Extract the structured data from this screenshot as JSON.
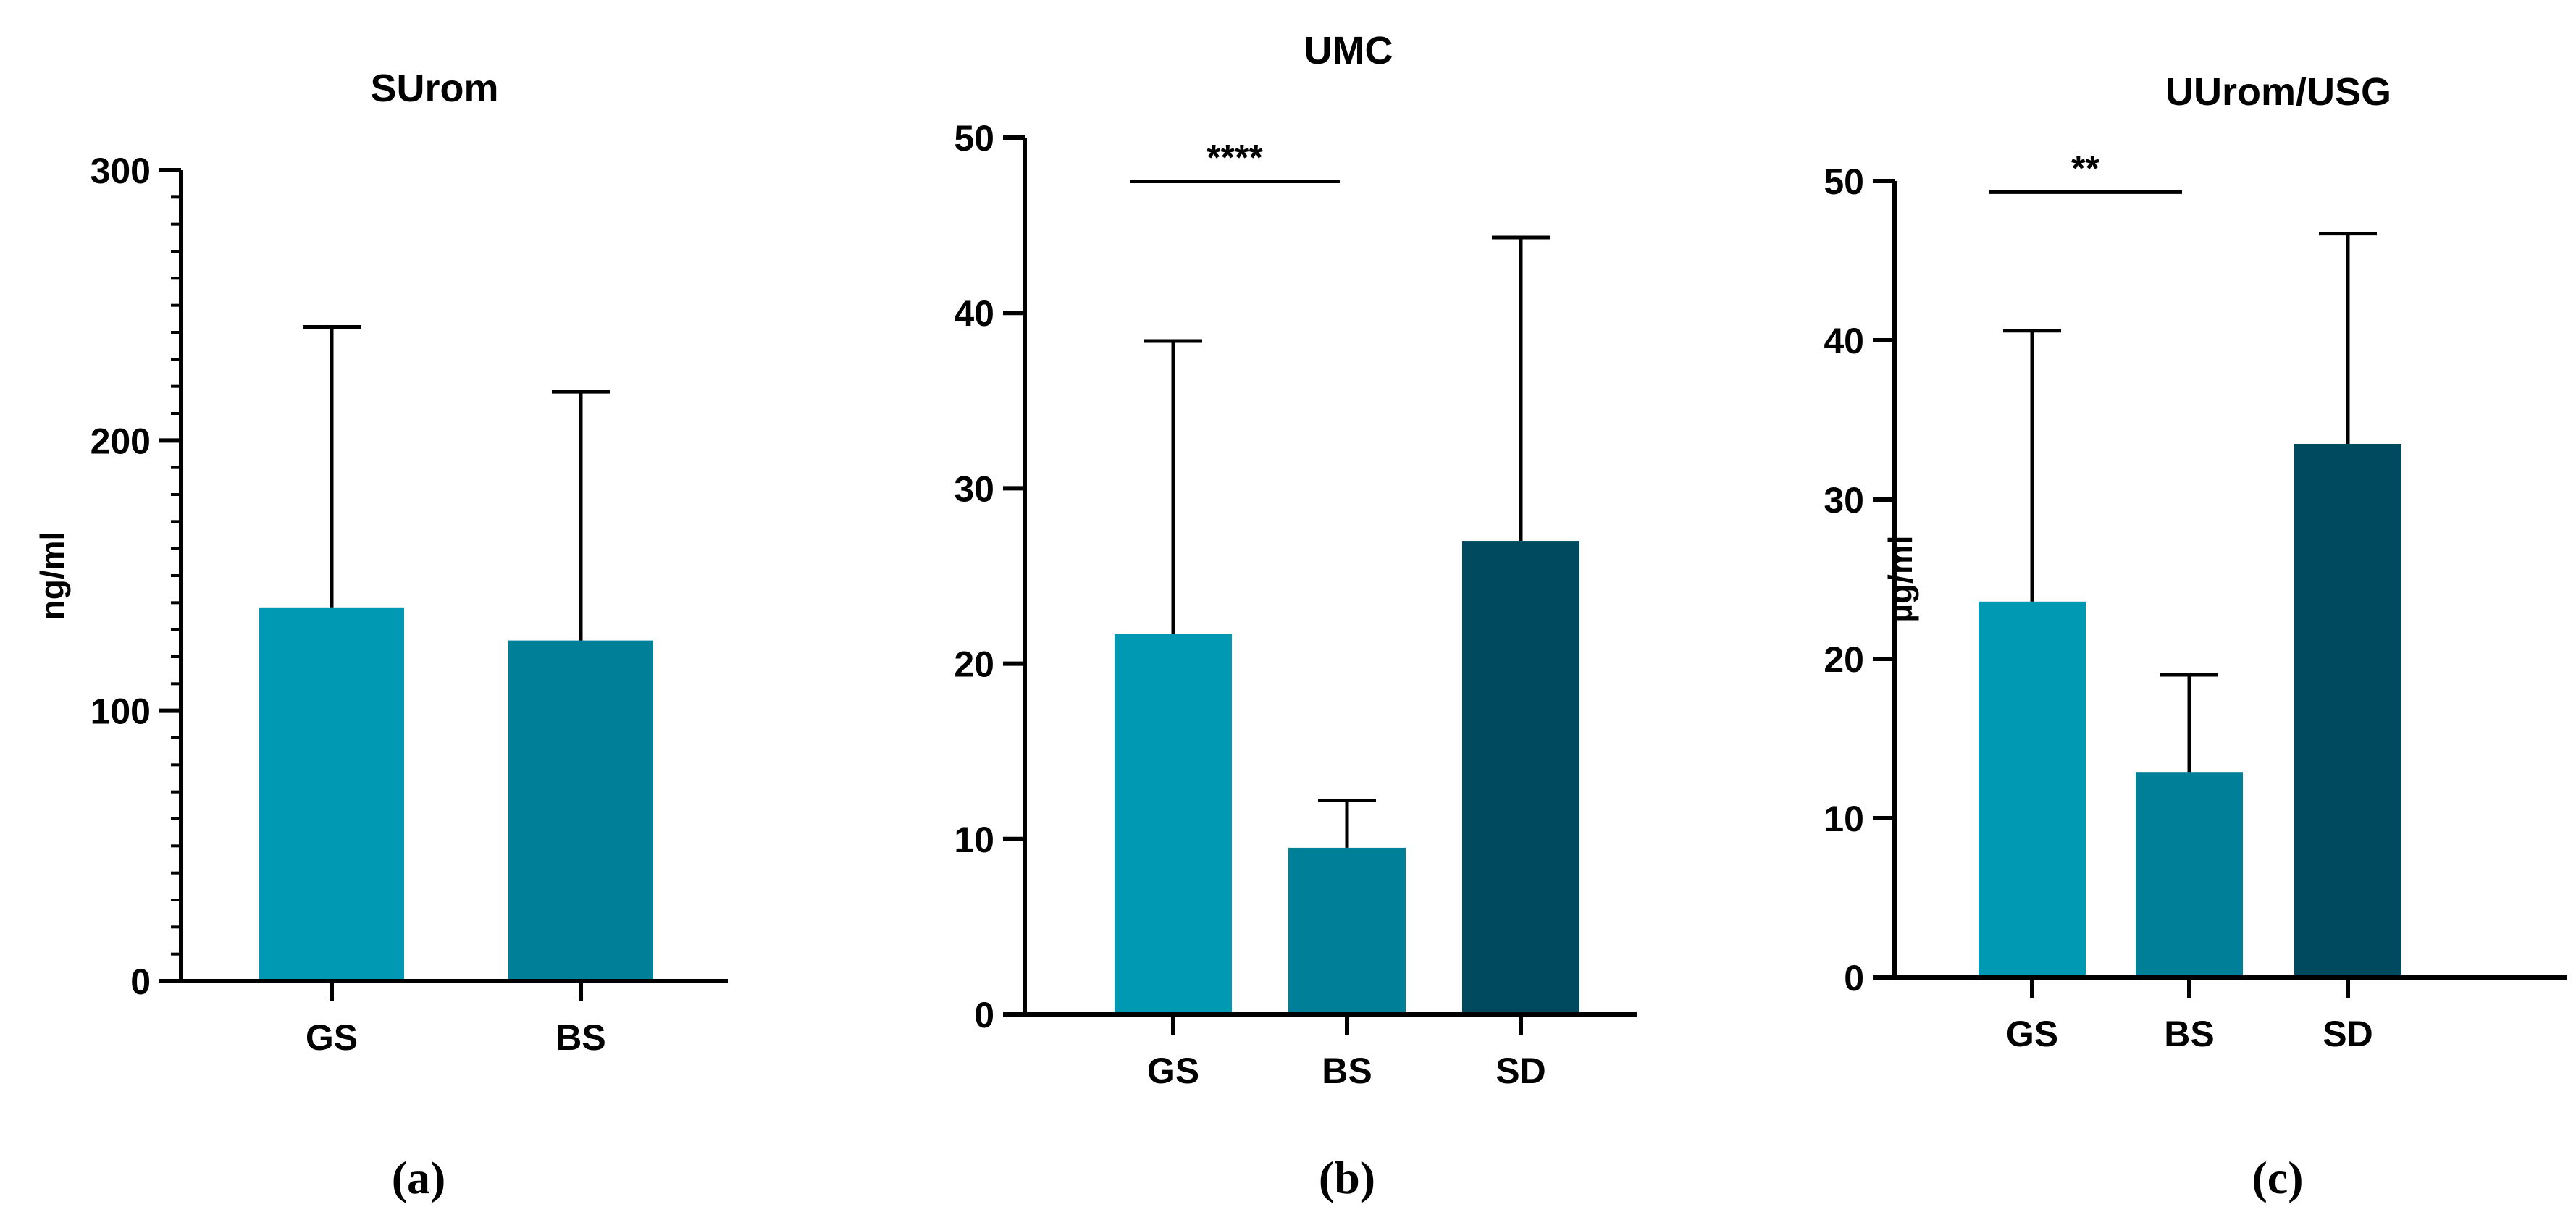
{
  "colors": {
    "GS": "#0099b4",
    "BS": "#007f99",
    "SD": "#004a60",
    "axis": "#000000"
  },
  "chart_data": [
    {
      "type": "bar",
      "title": "SUrom",
      "ylabel": "ng/ml",
      "xlabel": "",
      "categories": [
        "GS",
        "BS"
      ],
      "values": [
        138,
        126
      ],
      "error_upper": [
        242,
        218
      ],
      "ylim": [
        0,
        300
      ],
      "yticks": [
        "0",
        "100",
        "200",
        "300"
      ],
      "minor_ticks": true,
      "grid": false,
      "significance": [],
      "panel_label": "(a)"
    },
    {
      "type": "bar",
      "title": "UMC",
      "ylabel": "",
      "xlabel": "",
      "categories": [
        "GS",
        "BS",
        "SD"
      ],
      "values": [
        21.7,
        9.5,
        27.0
      ],
      "error_upper": [
        38.4,
        12.2,
        44.3
      ],
      "ylim": [
        0,
        50
      ],
      "yticks": [
        "0",
        "10",
        "20",
        "30",
        "40",
        "50"
      ],
      "minor_ticks": false,
      "grid": false,
      "significance": [
        {
          "from": "GS",
          "to": "BS",
          "label": "****",
          "level": 47.5
        }
      ],
      "panel_label": "(b)"
    },
    {
      "type": "bar",
      "title": "UUrom/USG",
      "ylabel": "µg/ml",
      "xlabel": "",
      "categories": [
        "GS",
        "BS",
        "SD"
      ],
      "values": [
        23.6,
        12.9,
        33.5
      ],
      "error_upper": [
        40.6,
        19.0,
        46.7
      ],
      "ylim": [
        0,
        50
      ],
      "yticks": [
        "0",
        "10",
        "20",
        "30",
        "40",
        "50"
      ],
      "minor_ticks": false,
      "grid": false,
      "significance": [
        {
          "from": "GS",
          "to": "BS",
          "label": "**",
          "level": 49.3
        }
      ],
      "panel_label": "(c)"
    }
  ]
}
